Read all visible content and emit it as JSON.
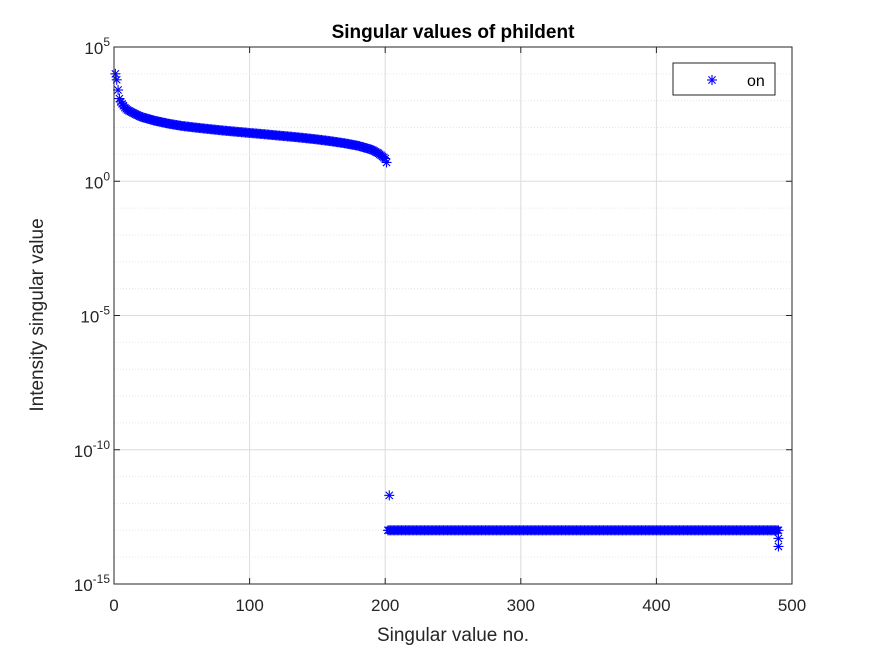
{
  "colors": {
    "series": "#0000ff",
    "grid": "#dcdcdc",
    "axes": "#262626",
    "background": "#ffffff"
  },
  "chart_data": {
    "type": "scatter",
    "title": "Singular values of phildent",
    "xlabel": "Singular value no.",
    "ylabel": "Intensity singular value",
    "xlim": [
      0,
      500
    ],
    "ylim": [
      1e-15,
      100000.0
    ],
    "yscale": "log",
    "grid": true,
    "minor_grid_y": true,
    "marker": "asterisk",
    "legend": {
      "position": "top-right",
      "entries": [
        "on"
      ]
    },
    "x_ticks": [
      "0",
      "100",
      "200",
      "300",
      "400",
      "500"
    ],
    "y_ticks": [
      {
        "base": "10",
        "exp": "-15"
      },
      {
        "base": "10",
        "exp": "-10"
      },
      {
        "base": "10",
        "exp": "-5"
      },
      {
        "base": "10",
        "exp": "0"
      },
      {
        "base": "10",
        "exp": "5"
      }
    ],
    "series": [
      {
        "name": "on",
        "color": "#0000ff",
        "curve_points": [
          [
            1,
            10000
          ],
          [
            2,
            6000
          ],
          [
            3,
            2500
          ],
          [
            4,
            1200
          ],
          [
            5,
            900
          ],
          [
            8,
            550
          ],
          [
            10,
            450
          ],
          [
            15,
            330
          ],
          [
            20,
            250
          ],
          [
            30,
            180
          ],
          [
            40,
            140
          ],
          [
            50,
            115
          ],
          [
            60,
            100
          ],
          [
            70,
            88
          ],
          [
            80,
            78
          ],
          [
            90,
            70
          ],
          [
            100,
            63
          ],
          [
            110,
            57
          ],
          [
            120,
            51
          ],
          [
            130,
            46
          ],
          [
            140,
            41
          ],
          [
            150,
            36
          ],
          [
            160,
            31
          ],
          [
            170,
            26
          ],
          [
            180,
            21
          ],
          [
            190,
            15
          ],
          [
            195,
            11
          ],
          [
            200,
            7
          ],
          [
            201,
            5
          ]
        ],
        "outliers": [
          [
            203,
            2e-12
          ]
        ],
        "floor_start": 202,
        "floor_end": 490,
        "floor_value": 1e-13,
        "tail_values": [
          [
            490,
            5e-14
          ],
          [
            490,
            2.5e-14
          ]
        ]
      }
    ]
  }
}
